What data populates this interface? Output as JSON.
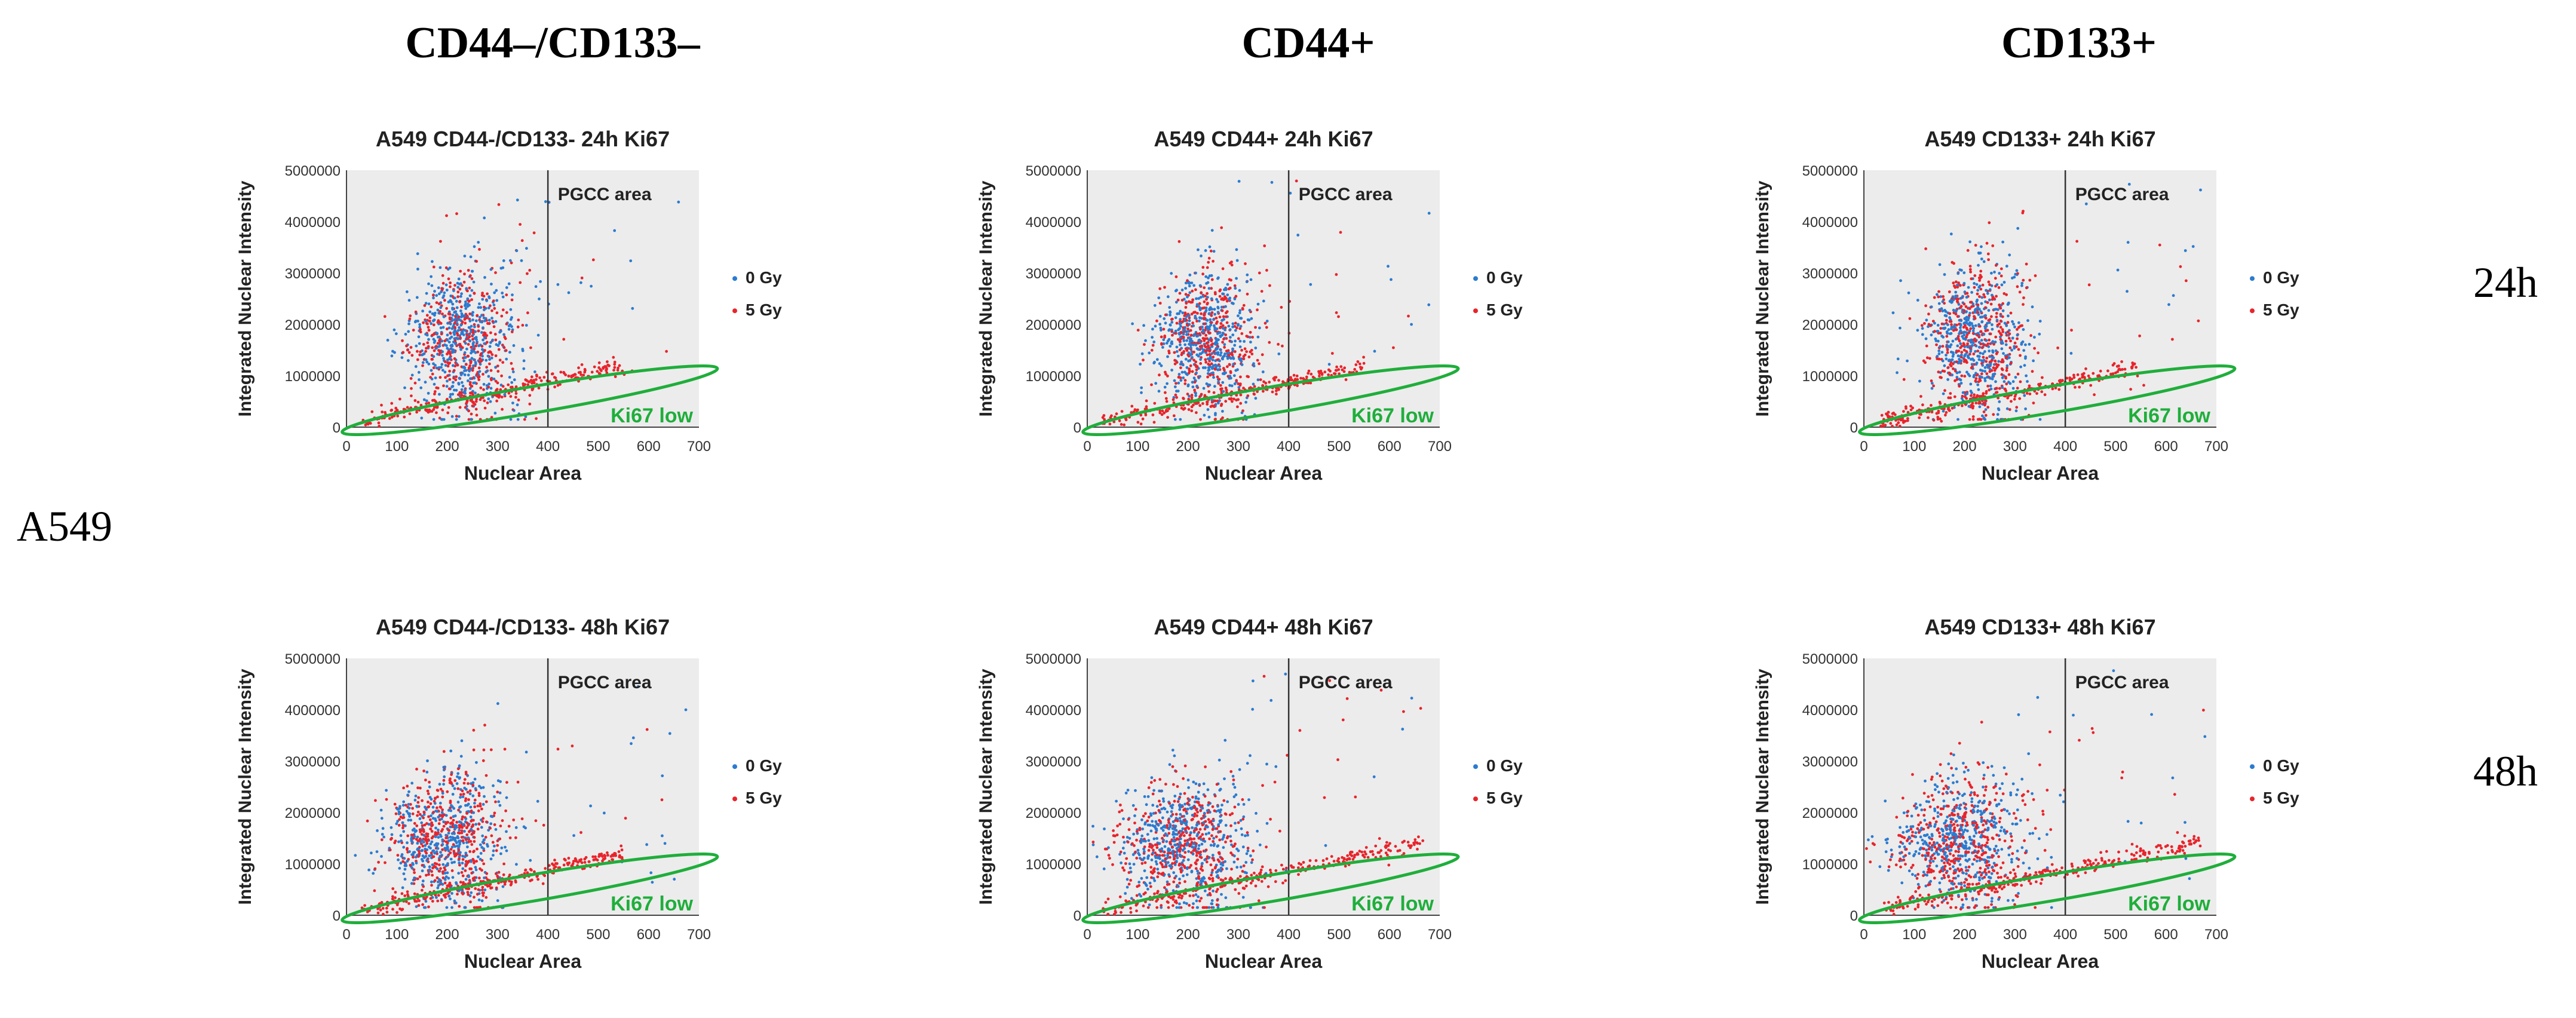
{
  "column_headers": [
    "CD44–/CD133–",
    "CD44+",
    "CD133+"
  ],
  "row_labels": [
    "24h",
    "48h"
  ],
  "cell_line_label": "A549",
  "chart_data": [
    {
      "type": "scatter",
      "title": "A549 CD44-/CD133- 24h Ki67",
      "xlabel": "Nuclear Area",
      "ylabel": "Integrated Nuclear Intensity",
      "xlim": [
        0,
        700
      ],
      "ylim": [
        0,
        5000000
      ],
      "xticks": [
        "0",
        "100",
        "200",
        "300",
        "400",
        "500",
        "600",
        "700"
      ],
      "yticks": [
        "0",
        "1000000",
        "2000000",
        "3000000",
        "4000000",
        "5000000"
      ],
      "series": [
        {
          "name": "0 Gy",
          "color": "#2b7bd0"
        },
        {
          "name": "5 Gy",
          "color": "#e8242b"
        }
      ],
      "threshold_x": 400,
      "region_labels": {
        "pgcc": "PGCC area",
        "ki67low": "Ki67 low"
      },
      "ellipse_color": "#1fae3b",
      "cluster": {
        "center_x": 235,
        "center_y": 1700000,
        "spread_x": 55,
        "spread_y": 750000
      }
    },
    {
      "type": "scatter",
      "title": "A549 CD44+ 24h Ki67",
      "xlabel": "Nuclear Area",
      "ylabel": "Integrated Nuclear Intensity",
      "xlim": [
        0,
        700
      ],
      "ylim": [
        0,
        5000000
      ],
      "xticks": [
        "0",
        "100",
        "200",
        "300",
        "400",
        "500",
        "600",
        "700"
      ],
      "yticks": [
        "0",
        "1000000",
        "2000000",
        "3000000",
        "4000000",
        "5000000"
      ],
      "series": [
        {
          "name": "0 Gy",
          "color": "#2b7bd0"
        },
        {
          "name": "5 Gy",
          "color": "#e8242b"
        }
      ],
      "threshold_x": 400,
      "region_labels": {
        "pgcc": "PGCC area",
        "ki67low": "Ki67 low"
      },
      "ellipse_color": "#1fae3b",
      "cluster": {
        "center_x": 235,
        "center_y": 1700000,
        "spread_x": 50,
        "spread_y": 700000
      }
    },
    {
      "type": "scatter",
      "title": "A549 CD133+ 24h Ki67",
      "xlabel": "Nuclear Area",
      "ylabel": "Integrated Nuclear Intensity",
      "xlim": [
        0,
        700
      ],
      "ylim": [
        0,
        5000000
      ],
      "xticks": [
        "0",
        "100",
        "200",
        "300",
        "400",
        "500",
        "600",
        "700"
      ],
      "yticks": [
        "0",
        "1000000",
        "2000000",
        "3000000",
        "4000000",
        "5000000"
      ],
      "series": [
        {
          "name": "0 Gy",
          "color": "#2b7bd0"
        },
        {
          "name": "5 Gy",
          "color": "#e8242b"
        }
      ],
      "threshold_x": 400,
      "region_labels": {
        "pgcc": "PGCC area",
        "ki67low": "Ki67 low"
      },
      "ellipse_color": "#1fae3b",
      "cluster": {
        "center_x": 220,
        "center_y": 1700000,
        "spread_x": 55,
        "spread_y": 750000
      }
    },
    {
      "type": "scatter",
      "title": "A549 CD44-/CD133- 48h Ki67",
      "xlabel": "Nuclear Area",
      "ylabel": "Integrated Nuclear Intensity",
      "xlim": [
        0,
        700
      ],
      "ylim": [
        0,
        5000000
      ],
      "xticks": [
        "0",
        "100",
        "200",
        "300",
        "400",
        "500",
        "600",
        "700"
      ],
      "yticks": [
        "0",
        "1000000",
        "2000000",
        "3000000",
        "4000000",
        "5000000"
      ],
      "series": [
        {
          "name": "0 Gy",
          "color": "#2b7bd0"
        },
        {
          "name": "5 Gy",
          "color": "#e8242b"
        }
      ],
      "threshold_x": 400,
      "region_labels": {
        "pgcc": "PGCC area",
        "ki67low": "Ki67 low"
      },
      "ellipse_color": "#1fae3b",
      "cluster": {
        "center_x": 200,
        "center_y": 1500000,
        "spread_x": 60,
        "spread_y": 700000
      }
    },
    {
      "type": "scatter",
      "title": "A549 CD44+ 48h Ki67",
      "xlabel": "Nuclear Area",
      "ylabel": "Integrated Nuclear Intensity",
      "xlim": [
        0,
        700
      ],
      "ylim": [
        0,
        5000000
      ],
      "xticks": [
        "0",
        "100",
        "200",
        "300",
        "400",
        "500",
        "600",
        "700"
      ],
      "yticks": [
        "0",
        "1000000",
        "2000000",
        "3000000",
        "4000000",
        "5000000"
      ],
      "series": [
        {
          "name": "0 Gy",
          "color": "#2b7bd0"
        },
        {
          "name": "5 Gy",
          "color": "#e8242b"
        }
      ],
      "threshold_x": 400,
      "region_labels": {
        "pgcc": "PGCC area",
        "ki67low": "Ki67 low"
      },
      "ellipse_color": "#1fae3b",
      "cluster": {
        "center_x": 190,
        "center_y": 1400000,
        "spread_x": 65,
        "spread_y": 700000
      }
    },
    {
      "type": "scatter",
      "title": "A549 CD133+ 48h Ki67",
      "xlabel": "Nuclear Area",
      "ylabel": "Integrated Nuclear Intensity",
      "xlim": [
        0,
        700
      ],
      "ylim": [
        0,
        5000000
      ],
      "xticks": [
        "0",
        "100",
        "200",
        "300",
        "400",
        "500",
        "600",
        "700"
      ],
      "yticks": [
        "0",
        "1000000",
        "2000000",
        "3000000",
        "4000000",
        "5000000"
      ],
      "series": [
        {
          "name": "0 Gy",
          "color": "#2b7bd0"
        },
        {
          "name": "5 Gy",
          "color": "#e8242b"
        }
      ],
      "threshold_x": 400,
      "region_labels": {
        "pgcc": "PGCC area",
        "ki67low": "Ki67 low"
      },
      "ellipse_color": "#1fae3b",
      "cluster": {
        "center_x": 190,
        "center_y": 1400000,
        "spread_x": 65,
        "spread_y": 700000
      }
    }
  ]
}
